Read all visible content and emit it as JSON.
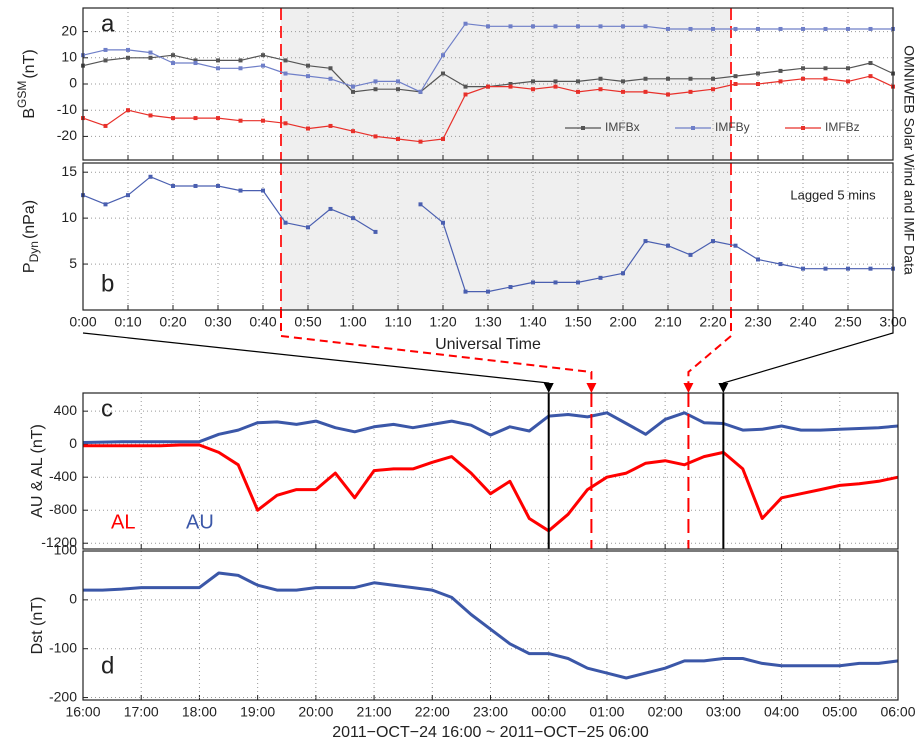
{
  "chart_data": [
    {
      "type": "line",
      "label": "a",
      "ylabel": "B",
      "ylabel_sup": "GSM",
      "ylabel_unit": "(nT)",
      "side_note": "OMNIWEB Solar Wind and IMF Data",
      "highlight_x": [
        44,
        144
      ],
      "highlight_color": "#efefef",
      "xlim": [
        0,
        180
      ],
      "ylim": [
        -29,
        29
      ],
      "yticks": [
        -20,
        -10,
        0,
        10,
        20
      ],
      "grid": true,
      "markers": true,
      "legend": "lower right",
      "x": [
        0,
        5,
        10,
        15,
        20,
        25,
        30,
        35,
        40,
        45,
        50,
        55,
        60,
        65,
        70,
        75,
        80,
        85,
        90,
        95,
        100,
        105,
        110,
        115,
        120,
        125,
        130,
        135,
        140,
        145,
        150,
        155,
        160,
        165,
        170,
        175,
        180
      ],
      "series": [
        {
          "name": "IMFBx",
          "color": "#555555",
          "values": [
            7,
            9,
            10,
            10,
            11,
            9,
            9,
            9,
            11,
            9,
            7,
            6,
            -3,
            -2,
            -2,
            -3,
            4,
            -1,
            -1,
            0,
            1,
            1,
            1,
            2,
            1,
            2,
            2,
            2,
            2,
            3,
            4,
            5,
            6,
            6,
            6,
            8,
            4
          ]
        },
        {
          "name": "IMFBy",
          "color": "#6f7fc8",
          "values": [
            11,
            13,
            13,
            12,
            8,
            8,
            6,
            6,
            7,
            4,
            3,
            2,
            -1,
            1,
            1,
            -3,
            11,
            23,
            22,
            22,
            22,
            22,
            22,
            22,
            22,
            22,
            21,
            21,
            21,
            21,
            21,
            21,
            21,
            21,
            21,
            21,
            21
          ]
        },
        {
          "name": "IMFBz",
          "color": "#e8302a",
          "values": [
            -13,
            -16,
            -10,
            -12,
            -13,
            -13,
            -13,
            -14,
            -14,
            -15,
            -17,
            -16,
            -18,
            -20,
            -21,
            -22,
            -21,
            -4,
            -1,
            -1,
            -2,
            -1,
            -3,
            -2,
            -3,
            -3,
            -4,
            -3,
            -2,
            0,
            0,
            1,
            2,
            2,
            1,
            3,
            -1
          ]
        }
      ]
    },
    {
      "type": "line",
      "label": "b",
      "ylabel": "P",
      "ylabel_sub": "Dyn",
      "ylabel_unit": "(nPa)",
      "annotation": "Lagged 5 mins",
      "xlabel": "Universal Time",
      "xlim": [
        0,
        180
      ],
      "ylim": [
        0,
        16
      ],
      "yticks": [
        5,
        10,
        15
      ],
      "grid": true,
      "markers": true,
      "xticks": [
        {
          "value": 0,
          "label": "0:00"
        },
        {
          "value": 10,
          "label": "0:10"
        },
        {
          "value": 20,
          "label": "0:20"
        },
        {
          "value": 30,
          "label": "0:30"
        },
        {
          "value": 40,
          "label": "0:40"
        },
        {
          "value": 50,
          "label": "0:50"
        },
        {
          "value": 60,
          "label": "1:00"
        },
        {
          "value": 70,
          "label": "1:10"
        },
        {
          "value": 80,
          "label": "1:20"
        },
        {
          "value": 90,
          "label": "1:30"
        },
        {
          "value": 100,
          "label": "1:40"
        },
        {
          "value": 110,
          "label": "1:50"
        },
        {
          "value": 120,
          "label": "2:00"
        },
        {
          "value": 130,
          "label": "2:10"
        },
        {
          "value": 140,
          "label": "2:20"
        },
        {
          "value": 150,
          "label": "2:30"
        },
        {
          "value": 160,
          "label": "2:40"
        },
        {
          "value": 170,
          "label": "2:50"
        },
        {
          "value": 180,
          "label": "3:00"
        }
      ],
      "x": [
        0,
        5,
        10,
        15,
        20,
        25,
        30,
        35,
        40,
        45,
        50,
        55,
        60,
        65,
        70,
        75,
        80,
        85,
        90,
        95,
        100,
        105,
        110,
        115,
        120,
        125,
        130,
        135,
        140,
        145,
        150,
        155,
        160,
        165,
        170,
        175,
        180
      ],
      "series": [
        {
          "name": "PDyn",
          "color": "#4a5fb0",
          "values": [
            12.5,
            11.5,
            12.5,
            14.5,
            13.5,
            13.5,
            13.5,
            13,
            13,
            9.5,
            9,
            11,
            10,
            8.5,
            null,
            11.5,
            9.5,
            2,
            2,
            2.5,
            3,
            3,
            3,
            3.5,
            4,
            7.5,
            7,
            6,
            7.5,
            7,
            5.5,
            5,
            4.5,
            4.5,
            4.5,
            4.5,
            4.5
          ]
        }
      ]
    },
    {
      "type": "line",
      "label": "c",
      "ylabel": "AU & AL (nT)",
      "legend": "lower left",
      "xlim": [
        0,
        840
      ],
      "ylim": [
        -1270,
        620
      ],
      "yticks": [
        -1200,
        -800,
        -400,
        0,
        400
      ],
      "grid": true,
      "markers": false,
      "event_lines": [
        {
          "x": 480,
          "color": "#000000",
          "style": "solid"
        },
        {
          "x": 524,
          "color": "#ff0000",
          "style": "dashed"
        },
        {
          "x": 624,
          "color": "#ff0000",
          "style": "dashed"
        },
        {
          "x": 660,
          "color": "#000000",
          "style": "solid"
        }
      ],
      "x": [
        0,
        20,
        40,
        60,
        80,
        100,
        120,
        140,
        160,
        180,
        200,
        220,
        240,
        260,
        280,
        300,
        320,
        340,
        360,
        380,
        400,
        420,
        440,
        460,
        480,
        500,
        520,
        540,
        560,
        580,
        600,
        620,
        640,
        660,
        680,
        700,
        720,
        740,
        760,
        780,
        800,
        820,
        840
      ],
      "series": [
        {
          "name": "AL",
          "color": "#ff0000",
          "values": [
            -20,
            -20,
            -20,
            -20,
            -20,
            -10,
            -10,
            -100,
            -250,
            -800,
            -620,
            -550,
            -550,
            -350,
            -650,
            -320,
            -300,
            -300,
            -220,
            -150,
            -350,
            -600,
            -450,
            -900,
            -1050,
            -850,
            -550,
            -400,
            -350,
            -230,
            -200,
            -250,
            -150,
            -100,
            -300,
            -900,
            -650,
            -600,
            -550,
            -500,
            -480,
            -450,
            -400
          ]
        },
        {
          "name": "AU",
          "color": "#3b57a8",
          "values": [
            20,
            25,
            30,
            30,
            30,
            30,
            30,
            120,
            170,
            260,
            270,
            240,
            280,
            200,
            150,
            210,
            240,
            200,
            240,
            280,
            230,
            110,
            210,
            160,
            340,
            360,
            330,
            380,
            250,
            120,
            300,
            380,
            260,
            250,
            170,
            180,
            220,
            170,
            170,
            180,
            190,
            200,
            220
          ]
        }
      ]
    },
    {
      "type": "line",
      "label": "d",
      "ylabel": "Dst (nT)",
      "xlabel": "2011−OCT−24 16:00 ~ 2011−OCT−25 06:00",
      "xlim": [
        0,
        840
      ],
      "ylim": [
        -205,
        100
      ],
      "yticks": [
        -200,
        -100,
        0,
        100
      ],
      "grid": true,
      "markers": false,
      "xticks": [
        {
          "value": 0,
          "label": "16:00"
        },
        {
          "value": 60,
          "label": "17:00"
        },
        {
          "value": 120,
          "label": "18:00"
        },
        {
          "value": 180,
          "label": "19:00"
        },
        {
          "value": 240,
          "label": "20:00"
        },
        {
          "value": 300,
          "label": "21:00"
        },
        {
          "value": 360,
          "label": "22:00"
        },
        {
          "value": 420,
          "label": "23:00"
        },
        {
          "value": 480,
          "label": "00:00"
        },
        {
          "value": 540,
          "label": "01:00"
        },
        {
          "value": 600,
          "label": "02:00"
        },
        {
          "value": 660,
          "label": "03:00"
        },
        {
          "value": 720,
          "label": "04:00"
        },
        {
          "value": 780,
          "label": "05:00"
        },
        {
          "value": 840,
          "label": "06:00"
        }
      ],
      "x": [
        0,
        20,
        40,
        60,
        80,
        100,
        120,
        140,
        160,
        180,
        200,
        220,
        240,
        260,
        280,
        300,
        320,
        340,
        360,
        380,
        400,
        420,
        440,
        460,
        480,
        500,
        520,
        540,
        560,
        580,
        600,
        620,
        640,
        660,
        680,
        700,
        720,
        740,
        760,
        780,
        800,
        820,
        840
      ],
      "series": [
        {
          "name": "Dst",
          "color": "#3b57a8",
          "values": [
            20,
            20,
            22,
            25,
            25,
            25,
            25,
            55,
            50,
            30,
            20,
            20,
            25,
            25,
            25,
            35,
            30,
            25,
            20,
            5,
            -30,
            -60,
            -90,
            -110,
            -110,
            -120,
            -140,
            -150,
            -160,
            -150,
            -140,
            -125,
            -125,
            -120,
            -120,
            -130,
            -135,
            -135,
            -135,
            -135,
            -130,
            -130,
            -125
          ]
        }
      ]
    }
  ]
}
